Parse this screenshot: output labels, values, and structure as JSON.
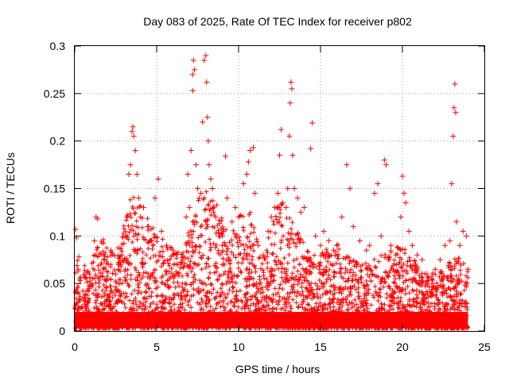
{
  "chart_data": {
    "type": "scatter",
    "title": "Day 083 of 2025, Rate Of TEC Index for receiver p802",
    "xlabel": "GPS time / hours",
    "ylabel": "ROTI / TECUs",
    "xlim": [
      0,
      25
    ],
    "ylim": [
      0,
      0.3
    ],
    "xticks": [
      0,
      5,
      10,
      15,
      20,
      25
    ],
    "yticks": [
      0,
      0.05,
      0.1,
      0.15,
      0.2,
      0.25,
      0.3
    ],
    "xtick_labels": [
      "0",
      "5",
      "10",
      "15",
      "20",
      "25"
    ],
    "ytick_labels": [
      "0",
      "0.05",
      "0.1",
      "0.15",
      "0.2",
      "0.25",
      "0.3"
    ],
    "grid": true,
    "marker": "+",
    "marker_color": "#ff0000",
    "series": [
      {
        "name": "p802",
        "points": [
          [
            0.05,
            0.107
          ],
          [
            0.1,
            0.098
          ],
          [
            0.2,
            0.065
          ],
          [
            0.25,
            0.078
          ],
          [
            0.3,
            0.055
          ],
          [
            0.5,
            0.042
          ],
          [
            0.8,
            0.03
          ],
          [
            1.0,
            0.05
          ],
          [
            1.2,
            0.095
          ],
          [
            1.3,
            0.12
          ],
          [
            1.4,
            0.118
          ],
          [
            1.6,
            0.07
          ],
          [
            1.8,
            0.075
          ],
          [
            2.0,
            0.055
          ],
          [
            2.2,
            0.085
          ],
          [
            2.5,
            0.06
          ],
          [
            2.8,
            0.07
          ],
          [
            3.0,
            0.092
          ],
          [
            3.2,
            0.12
          ],
          [
            3.3,
            0.165
          ],
          [
            3.4,
            0.175
          ],
          [
            3.5,
            0.21
          ],
          [
            3.55,
            0.215
          ],
          [
            3.6,
            0.205
          ],
          [
            3.7,
            0.19
          ],
          [
            3.8,
            0.165
          ],
          [
            3.9,
            0.14
          ],
          [
            4.0,
            0.12
          ],
          [
            4.2,
            0.13
          ],
          [
            4.5,
            0.11
          ],
          [
            4.7,
            0.095
          ],
          [
            4.9,
            0.14
          ],
          [
            5.1,
            0.16
          ],
          [
            5.3,
            0.105
          ],
          [
            5.6,
            0.09
          ],
          [
            6.0,
            0.085
          ],
          [
            6.3,
            0.07
          ],
          [
            6.6,
            0.075
          ],
          [
            6.8,
            0.12
          ],
          [
            6.9,
            0.165
          ],
          [
            7.0,
            0.13
          ],
          [
            7.1,
            0.19
          ],
          [
            7.2,
            0.27
          ],
          [
            7.25,
            0.285
          ],
          [
            7.3,
            0.275
          ],
          [
            7.2,
            0.253
          ],
          [
            7.4,
            0.175
          ],
          [
            7.5,
            0.15
          ],
          [
            7.6,
            0.14
          ],
          [
            7.7,
            0.145
          ],
          [
            7.8,
            0.22
          ],
          [
            7.9,
            0.285
          ],
          [
            8.0,
            0.29
          ],
          [
            8.05,
            0.262
          ],
          [
            8.1,
            0.225
          ],
          [
            8.15,
            0.2
          ],
          [
            8.2,
            0.175
          ],
          [
            8.3,
            0.16
          ],
          [
            8.4,
            0.15
          ],
          [
            8.6,
            0.12
          ],
          [
            8.8,
            0.1
          ],
          [
            9.0,
            0.09
          ],
          [
            9.2,
            0.184
          ],
          [
            9.3,
            0.14
          ],
          [
            9.6,
            0.115
          ],
          [
            9.8,
            0.13
          ],
          [
            10.0,
            0.12
          ],
          [
            10.3,
            0.155
          ],
          [
            10.5,
            0.165
          ],
          [
            10.6,
            0.178
          ],
          [
            10.7,
            0.19
          ],
          [
            10.9,
            0.193
          ],
          [
            11.0,
            0.145
          ],
          [
            11.2,
            0.09
          ],
          [
            11.5,
            0.08
          ],
          [
            11.8,
            0.105
          ],
          [
            12.0,
            0.12
          ],
          [
            12.2,
            0.13
          ],
          [
            12.4,
            0.145
          ],
          [
            12.5,
            0.185
          ],
          [
            12.6,
            0.212
          ],
          [
            12.7,
            0.135
          ],
          [
            12.9,
            0.13
          ],
          [
            13.0,
            0.15
          ],
          [
            13.1,
            0.205
          ],
          [
            13.15,
            0.24
          ],
          [
            13.2,
            0.262
          ],
          [
            13.25,
            0.255
          ],
          [
            13.3,
            0.185
          ],
          [
            13.4,
            0.15
          ],
          [
            13.6,
            0.14
          ],
          [
            13.8,
            0.125
          ],
          [
            14.0,
            0.13
          ],
          [
            14.4,
            0.192
          ],
          [
            14.5,
            0.219
          ],
          [
            14.7,
            0.1
          ],
          [
            15.0,
            0.09
          ],
          [
            15.2,
            0.105
          ],
          [
            15.5,
            0.095
          ],
          [
            15.8,
            0.085
          ],
          [
            16.0,
            0.09
          ],
          [
            16.3,
            0.12
          ],
          [
            16.6,
            0.175
          ],
          [
            16.8,
            0.15
          ],
          [
            17.0,
            0.11
          ],
          [
            17.4,
            0.095
          ],
          [
            17.8,
            0.085
          ],
          [
            18.0,
            0.09
          ],
          [
            18.3,
            0.145
          ],
          [
            18.5,
            0.155
          ],
          [
            18.7,
            0.1
          ],
          [
            18.9,
            0.18
          ],
          [
            19.0,
            0.175
          ],
          [
            19.3,
            0.09
          ],
          [
            19.6,
            0.08
          ],
          [
            19.9,
            0.12
          ],
          [
            20.0,
            0.163
          ],
          [
            20.1,
            0.145
          ],
          [
            20.2,
            0.135
          ],
          [
            20.4,
            0.105
          ],
          [
            20.6,
            0.09
          ],
          [
            20.9,
            0.08
          ],
          [
            21.2,
            0.075
          ],
          [
            21.5,
            0.06
          ],
          [
            21.8,
            0.05
          ],
          [
            22.0,
            0.065
          ],
          [
            22.3,
            0.075
          ],
          [
            22.6,
            0.09
          ],
          [
            22.9,
            0.095
          ],
          [
            23.0,
            0.155
          ],
          [
            23.1,
            0.205
          ],
          [
            23.15,
            0.235
          ],
          [
            23.2,
            0.26
          ],
          [
            23.25,
            0.23
          ],
          [
            23.3,
            0.115
          ],
          [
            23.5,
            0.09
          ],
          [
            23.7,
            0.105
          ],
          [
            23.9,
            0.1
          ],
          [
            24.0,
            0.065
          ]
        ]
      }
    ]
  }
}
